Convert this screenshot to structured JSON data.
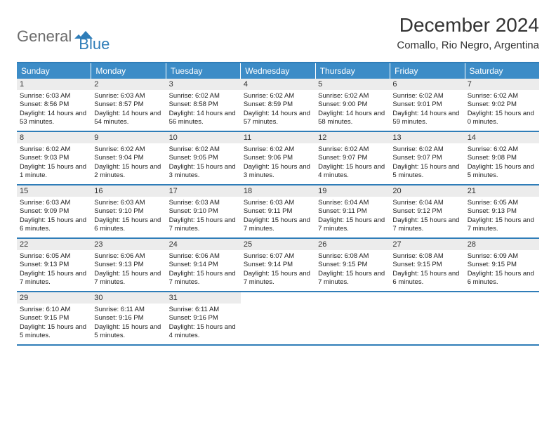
{
  "logo": {
    "part1": "General",
    "part2": "Blue"
  },
  "title": "December 2024",
  "location": "Comallo, Rio Negro, Argentina",
  "colors": {
    "accent": "#2f7db8",
    "headerBg": "#3c8cc7",
    "dayNumBg": "#ececec",
    "logoGray": "#6b6b6b"
  },
  "dayHeaders": [
    "Sunday",
    "Monday",
    "Tuesday",
    "Wednesday",
    "Thursday",
    "Friday",
    "Saturday"
  ],
  "weeks": [
    [
      {
        "num": "1",
        "sunrise": "Sunrise: 6:03 AM",
        "sunset": "Sunset: 8:56 PM",
        "daylight": "Daylight: 14 hours and 53 minutes."
      },
      {
        "num": "2",
        "sunrise": "Sunrise: 6:03 AM",
        "sunset": "Sunset: 8:57 PM",
        "daylight": "Daylight: 14 hours and 54 minutes."
      },
      {
        "num": "3",
        "sunrise": "Sunrise: 6:02 AM",
        "sunset": "Sunset: 8:58 PM",
        "daylight": "Daylight: 14 hours and 56 minutes."
      },
      {
        "num": "4",
        "sunrise": "Sunrise: 6:02 AM",
        "sunset": "Sunset: 8:59 PM",
        "daylight": "Daylight: 14 hours and 57 minutes."
      },
      {
        "num": "5",
        "sunrise": "Sunrise: 6:02 AM",
        "sunset": "Sunset: 9:00 PM",
        "daylight": "Daylight: 14 hours and 58 minutes."
      },
      {
        "num": "6",
        "sunrise": "Sunrise: 6:02 AM",
        "sunset": "Sunset: 9:01 PM",
        "daylight": "Daylight: 14 hours and 59 minutes."
      },
      {
        "num": "7",
        "sunrise": "Sunrise: 6:02 AM",
        "sunset": "Sunset: 9:02 PM",
        "daylight": "Daylight: 15 hours and 0 minutes."
      }
    ],
    [
      {
        "num": "8",
        "sunrise": "Sunrise: 6:02 AM",
        "sunset": "Sunset: 9:03 PM",
        "daylight": "Daylight: 15 hours and 1 minute."
      },
      {
        "num": "9",
        "sunrise": "Sunrise: 6:02 AM",
        "sunset": "Sunset: 9:04 PM",
        "daylight": "Daylight: 15 hours and 2 minutes."
      },
      {
        "num": "10",
        "sunrise": "Sunrise: 6:02 AM",
        "sunset": "Sunset: 9:05 PM",
        "daylight": "Daylight: 15 hours and 3 minutes."
      },
      {
        "num": "11",
        "sunrise": "Sunrise: 6:02 AM",
        "sunset": "Sunset: 9:06 PM",
        "daylight": "Daylight: 15 hours and 3 minutes."
      },
      {
        "num": "12",
        "sunrise": "Sunrise: 6:02 AM",
        "sunset": "Sunset: 9:07 PM",
        "daylight": "Daylight: 15 hours and 4 minutes."
      },
      {
        "num": "13",
        "sunrise": "Sunrise: 6:02 AM",
        "sunset": "Sunset: 9:07 PM",
        "daylight": "Daylight: 15 hours and 5 minutes."
      },
      {
        "num": "14",
        "sunrise": "Sunrise: 6:02 AM",
        "sunset": "Sunset: 9:08 PM",
        "daylight": "Daylight: 15 hours and 5 minutes."
      }
    ],
    [
      {
        "num": "15",
        "sunrise": "Sunrise: 6:03 AM",
        "sunset": "Sunset: 9:09 PM",
        "daylight": "Daylight: 15 hours and 6 minutes."
      },
      {
        "num": "16",
        "sunrise": "Sunrise: 6:03 AM",
        "sunset": "Sunset: 9:10 PM",
        "daylight": "Daylight: 15 hours and 6 minutes."
      },
      {
        "num": "17",
        "sunrise": "Sunrise: 6:03 AM",
        "sunset": "Sunset: 9:10 PM",
        "daylight": "Daylight: 15 hours and 7 minutes."
      },
      {
        "num": "18",
        "sunrise": "Sunrise: 6:03 AM",
        "sunset": "Sunset: 9:11 PM",
        "daylight": "Daylight: 15 hours and 7 minutes."
      },
      {
        "num": "19",
        "sunrise": "Sunrise: 6:04 AM",
        "sunset": "Sunset: 9:11 PM",
        "daylight": "Daylight: 15 hours and 7 minutes."
      },
      {
        "num": "20",
        "sunrise": "Sunrise: 6:04 AM",
        "sunset": "Sunset: 9:12 PM",
        "daylight": "Daylight: 15 hours and 7 minutes."
      },
      {
        "num": "21",
        "sunrise": "Sunrise: 6:05 AM",
        "sunset": "Sunset: 9:13 PM",
        "daylight": "Daylight: 15 hours and 7 minutes."
      }
    ],
    [
      {
        "num": "22",
        "sunrise": "Sunrise: 6:05 AM",
        "sunset": "Sunset: 9:13 PM",
        "daylight": "Daylight: 15 hours and 7 minutes."
      },
      {
        "num": "23",
        "sunrise": "Sunrise: 6:06 AM",
        "sunset": "Sunset: 9:13 PM",
        "daylight": "Daylight: 15 hours and 7 minutes."
      },
      {
        "num": "24",
        "sunrise": "Sunrise: 6:06 AM",
        "sunset": "Sunset: 9:14 PM",
        "daylight": "Daylight: 15 hours and 7 minutes."
      },
      {
        "num": "25",
        "sunrise": "Sunrise: 6:07 AM",
        "sunset": "Sunset: 9:14 PM",
        "daylight": "Daylight: 15 hours and 7 minutes."
      },
      {
        "num": "26",
        "sunrise": "Sunrise: 6:08 AM",
        "sunset": "Sunset: 9:15 PM",
        "daylight": "Daylight: 15 hours and 7 minutes."
      },
      {
        "num": "27",
        "sunrise": "Sunrise: 6:08 AM",
        "sunset": "Sunset: 9:15 PM",
        "daylight": "Daylight: 15 hours and 6 minutes."
      },
      {
        "num": "28",
        "sunrise": "Sunrise: 6:09 AM",
        "sunset": "Sunset: 9:15 PM",
        "daylight": "Daylight: 15 hours and 6 minutes."
      }
    ],
    [
      {
        "num": "29",
        "sunrise": "Sunrise: 6:10 AM",
        "sunset": "Sunset: 9:15 PM",
        "daylight": "Daylight: 15 hours and 5 minutes."
      },
      {
        "num": "30",
        "sunrise": "Sunrise: 6:11 AM",
        "sunset": "Sunset: 9:16 PM",
        "daylight": "Daylight: 15 hours and 5 minutes."
      },
      {
        "num": "31",
        "sunrise": "Sunrise: 6:11 AM",
        "sunset": "Sunset: 9:16 PM",
        "daylight": "Daylight: 15 hours and 4 minutes."
      },
      {
        "empty": true
      },
      {
        "empty": true
      },
      {
        "empty": true
      },
      {
        "empty": true
      }
    ]
  ]
}
